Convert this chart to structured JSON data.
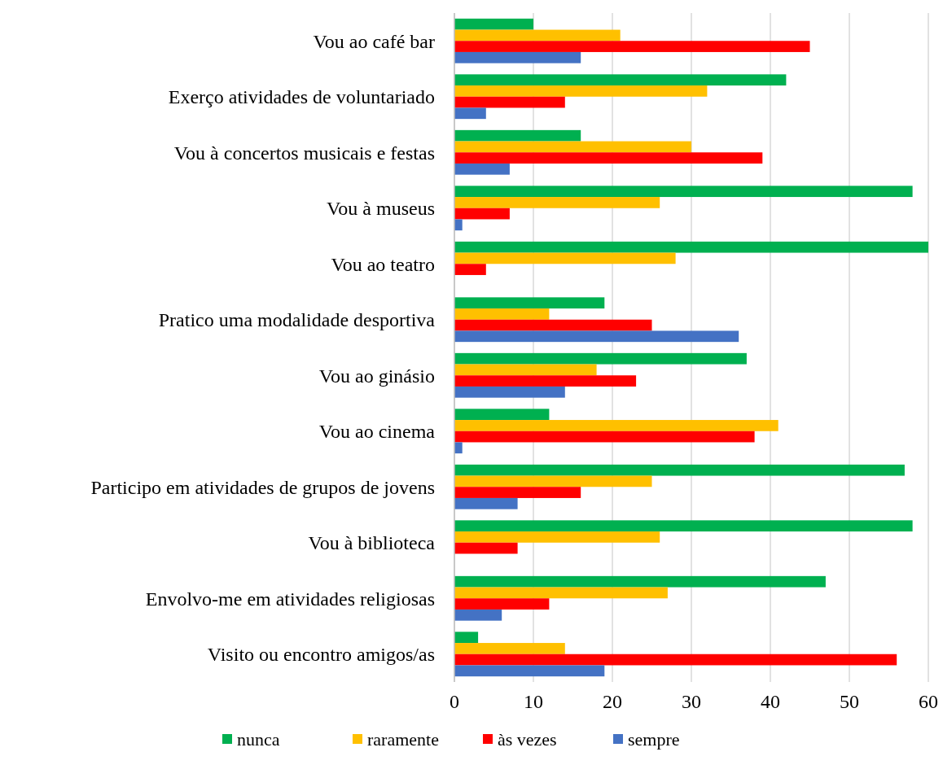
{
  "chart_data": {
    "type": "bar",
    "orientation": "horizontal",
    "categories": [
      "Vou ao café bar",
      "Exerço atividades de voluntariado",
      "Vou à concertos musicais e festas",
      "Vou à museus",
      "Vou ao teatro",
      "Pratico uma modalidade desportiva",
      "Vou ao ginásio",
      "Vou ao cinema",
      "Participo em atividades de grupos de jovens",
      "Vou à biblioteca",
      "Envolvo-me em atividades religiosas",
      "Visito ou encontro amigos/as"
    ],
    "series": [
      {
        "name": "nunca",
        "color": "#00b050",
        "values": [
          10,
          42,
          16,
          58,
          60,
          19,
          37,
          12,
          57,
          58,
          47,
          3
        ]
      },
      {
        "name": "raramente",
        "color": "#ffc000",
        "values": [
          21,
          32,
          30,
          26,
          28,
          12,
          18,
          41,
          25,
          26,
          27,
          14
        ]
      },
      {
        "name": "às vezes",
        "color": "#ff0000",
        "values": [
          45,
          14,
          39,
          7,
          4,
          25,
          23,
          38,
          16,
          8,
          12,
          56
        ]
      },
      {
        "name": "sempre",
        "color": "#4472c4",
        "values": [
          16,
          4,
          7,
          1,
          0,
          36,
          14,
          1,
          8,
          0,
          6,
          19
        ]
      }
    ],
    "xlim": [
      0,
      60
    ],
    "xticks": [
      0,
      10,
      20,
      30,
      40,
      50,
      60
    ],
    "grid": "x",
    "legend": "bottom"
  }
}
